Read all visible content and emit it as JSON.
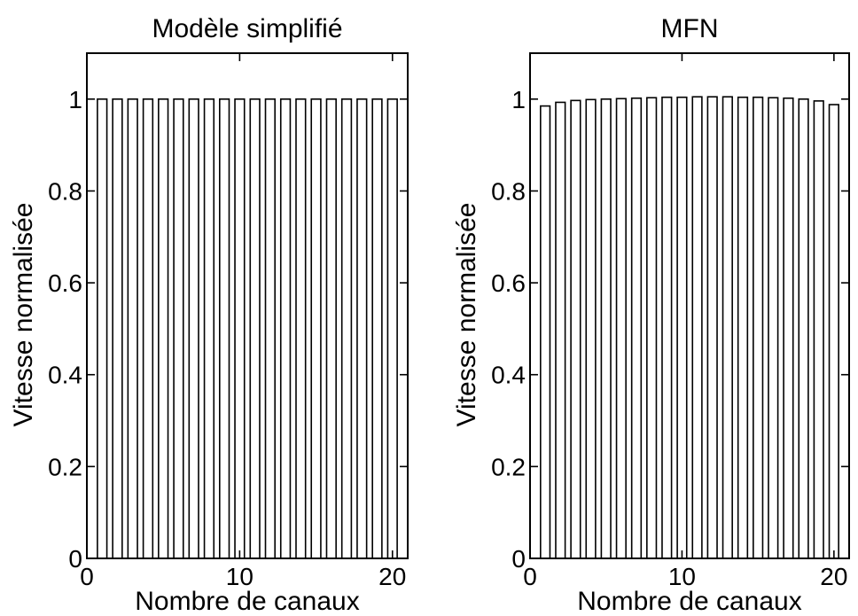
{
  "chart_data": [
    {
      "type": "bar",
      "title": "Modèle simplifié",
      "xlabel": "Nombre de canaux",
      "ylabel": "Vitesse normalisée",
      "x": [
        1,
        2,
        3,
        4,
        5,
        6,
        7,
        8,
        9,
        10,
        11,
        12,
        13,
        14,
        15,
        16,
        17,
        18,
        19,
        20
      ],
      "values": [
        1,
        1,
        1,
        1,
        1,
        1,
        1,
        1,
        1,
        1,
        1,
        1,
        1,
        1,
        1,
        1,
        1,
        1,
        1,
        1
      ],
      "xlim": [
        0,
        21
      ],
      "ylim": [
        0,
        1.1
      ],
      "xticks": [
        0,
        10,
        20
      ],
      "xtick_labels": [
        "0",
        "10",
        "20"
      ],
      "yticks": [
        0,
        0.2,
        0.4,
        0.6,
        0.8,
        1
      ],
      "ytick_labels": [
        "0",
        "0.2",
        "0.4",
        "0.6",
        "0.8",
        "1"
      ],
      "grid": false
    },
    {
      "type": "bar",
      "title": "MFN",
      "xlabel": "Nombre de canaux",
      "ylabel": "Vitesse normalisée",
      "x": [
        1,
        2,
        3,
        4,
        5,
        6,
        7,
        8,
        9,
        10,
        11,
        12,
        13,
        14,
        15,
        16,
        17,
        18,
        19,
        20
      ],
      "values": [
        0.985,
        0.993,
        0.997,
        0.999,
        1.0,
        1.001,
        1.002,
        1.003,
        1.004,
        1.004,
        1.005,
        1.005,
        1.005,
        1.004,
        1.004,
        1.003,
        1.002,
        1.0,
        0.996,
        0.988
      ],
      "xlim": [
        0,
        21
      ],
      "ylim": [
        0,
        1.1
      ],
      "xticks": [
        0,
        10,
        20
      ],
      "xtick_labels": [
        "0",
        "10",
        "20"
      ],
      "yticks": [
        0,
        0.2,
        0.4,
        0.6,
        0.8,
        1
      ],
      "ytick_labels": [
        "0",
        "0.2",
        "0.4",
        "0.6",
        "0.8",
        "1"
      ],
      "grid": false
    }
  ]
}
